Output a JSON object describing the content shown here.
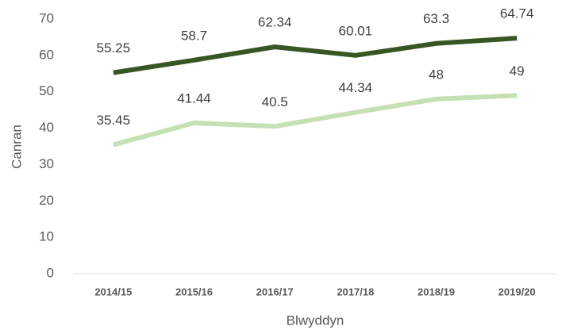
{
  "chart_data": {
    "type": "line",
    "x_label": "Blwyddyn",
    "y_label": "Canran",
    "categories": [
      "2014/15",
      "2015/16",
      "2016/17",
      "2017/18",
      "2018/19",
      "2019/20"
    ],
    "series": [
      {
        "color": "#375623",
        "values": [
          55.25,
          58.7,
          62.34,
          60.01,
          63.3,
          64.74
        ]
      },
      {
        "color": "#c5e0b4",
        "values": [
          35.45,
          41.44,
          40.5,
          44.34,
          48,
          49
        ]
      }
    ],
    "ylim": [
      0,
      70
    ],
    "yticks": [
      0,
      10,
      20,
      30,
      40,
      50,
      60,
      70
    ],
    "grid": false
  }
}
